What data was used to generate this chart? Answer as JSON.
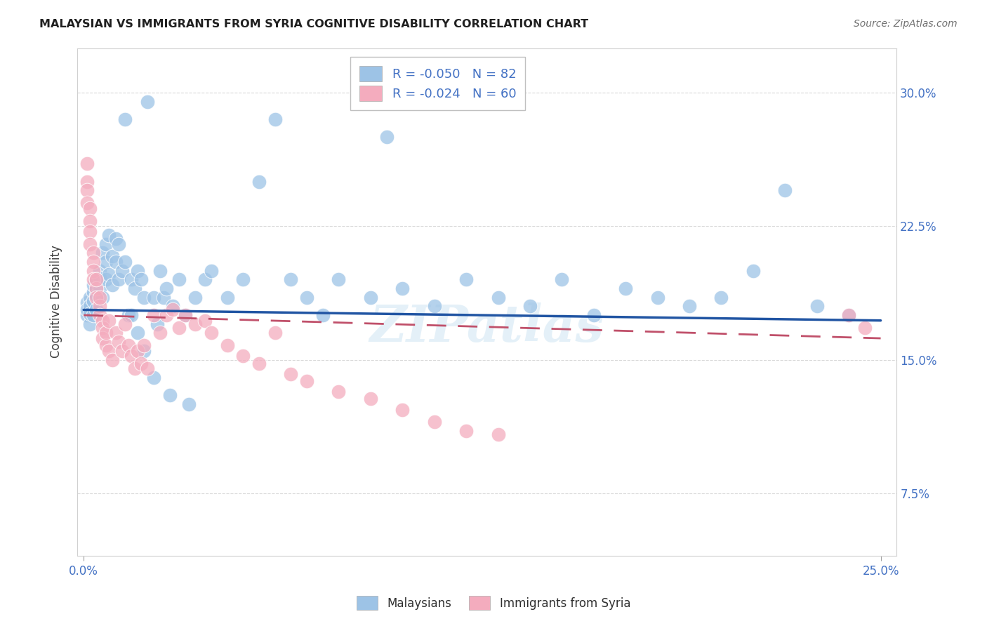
{
  "title": "MALAYSIAN VS IMMIGRANTS FROM SYRIA COGNITIVE DISABILITY CORRELATION CHART",
  "source": "Source: ZipAtlas.com",
  "ylabel": "Cognitive Disability",
  "xlim": [
    -0.002,
    0.255
  ],
  "ylim": [
    0.04,
    0.325
  ],
  "xticks": [
    0.0,
    0.25
  ],
  "yticks": [
    0.075,
    0.15,
    0.225,
    0.3
  ],
  "xticklabels": [
    "0.0%",
    "25.0%"
  ],
  "yticklabels_right": [
    "7.5%",
    "15.0%",
    "22.5%",
    "30.0%"
  ],
  "legend_label_blue": "Malaysians",
  "legend_label_pink": "Immigrants from Syria",
  "blue_color": "#9DC3E6",
  "pink_color": "#F4ACBE",
  "trend_blue_color": "#2155A3",
  "trend_pink_color": "#C0506A",
  "malaysians_x": [
    0.001,
    0.001,
    0.001,
    0.002,
    0.002,
    0.002,
    0.002,
    0.003,
    0.003,
    0.003,
    0.003,
    0.004,
    0.004,
    0.004,
    0.005,
    0.005,
    0.005,
    0.006,
    0.006,
    0.007,
    0.007,
    0.007,
    0.008,
    0.008,
    0.009,
    0.009,
    0.01,
    0.01,
    0.011,
    0.011,
    0.012,
    0.013,
    0.013,
    0.014,
    0.015,
    0.016,
    0.017,
    0.018,
    0.019,
    0.02,
    0.022,
    0.023,
    0.024,
    0.025,
    0.026,
    0.028,
    0.03,
    0.032,
    0.035,
    0.038,
    0.04,
    0.045,
    0.05,
    0.055,
    0.06,
    0.065,
    0.07,
    0.075,
    0.08,
    0.09,
    0.095,
    0.1,
    0.11,
    0.12,
    0.13,
    0.14,
    0.15,
    0.16,
    0.17,
    0.18,
    0.19,
    0.2,
    0.21,
    0.22,
    0.23,
    0.24,
    0.015,
    0.017,
    0.019,
    0.022,
    0.027,
    0.033
  ],
  "malaysians_y": [
    0.175,
    0.182,
    0.178,
    0.17,
    0.185,
    0.18,
    0.176,
    0.188,
    0.192,
    0.175,
    0.183,
    0.195,
    0.178,
    0.186,
    0.2,
    0.19,
    0.196,
    0.185,
    0.21,
    0.195,
    0.205,
    0.215,
    0.22,
    0.198,
    0.208,
    0.192,
    0.218,
    0.205,
    0.195,
    0.215,
    0.2,
    0.205,
    0.285,
    0.175,
    0.195,
    0.19,
    0.2,
    0.195,
    0.185,
    0.295,
    0.185,
    0.17,
    0.2,
    0.185,
    0.19,
    0.18,
    0.195,
    0.175,
    0.185,
    0.195,
    0.2,
    0.185,
    0.195,
    0.25,
    0.285,
    0.195,
    0.185,
    0.175,
    0.195,
    0.185,
    0.275,
    0.19,
    0.18,
    0.195,
    0.185,
    0.18,
    0.195,
    0.175,
    0.19,
    0.185,
    0.18,
    0.185,
    0.2,
    0.245,
    0.18,
    0.175,
    0.175,
    0.165,
    0.155,
    0.14,
    0.13,
    0.125
  ],
  "syria_x": [
    0.001,
    0.001,
    0.001,
    0.001,
    0.002,
    0.002,
    0.002,
    0.002,
    0.003,
    0.003,
    0.003,
    0.003,
    0.004,
    0.004,
    0.004,
    0.005,
    0.005,
    0.005,
    0.006,
    0.006,
    0.006,
    0.007,
    0.007,
    0.008,
    0.008,
    0.009,
    0.01,
    0.011,
    0.012,
    0.013,
    0.014,
    0.015,
    0.016,
    0.017,
    0.018,
    0.019,
    0.02,
    0.022,
    0.024,
    0.026,
    0.028,
    0.03,
    0.032,
    0.035,
    0.038,
    0.04,
    0.045,
    0.05,
    0.055,
    0.06,
    0.065,
    0.07,
    0.08,
    0.09,
    0.1,
    0.11,
    0.12,
    0.13,
    0.24,
    0.245
  ],
  "syria_y": [
    0.26,
    0.25,
    0.245,
    0.238,
    0.235,
    0.228,
    0.222,
    0.215,
    0.21,
    0.205,
    0.2,
    0.195,
    0.19,
    0.185,
    0.195,
    0.18,
    0.175,
    0.185,
    0.172,
    0.168,
    0.162,
    0.158,
    0.165,
    0.155,
    0.172,
    0.15,
    0.165,
    0.16,
    0.155,
    0.17,
    0.158,
    0.152,
    0.145,
    0.155,
    0.148,
    0.158,
    0.145,
    0.175,
    0.165,
    0.175,
    0.178,
    0.168,
    0.175,
    0.17,
    0.172,
    0.165,
    0.158,
    0.152,
    0.148,
    0.165,
    0.142,
    0.138,
    0.132,
    0.128,
    0.122,
    0.115,
    0.11,
    0.108,
    0.175,
    0.168
  ],
  "watermark": "ZIPatlas",
  "figsize": [
    14.06,
    8.92
  ],
  "dpi": 100
}
